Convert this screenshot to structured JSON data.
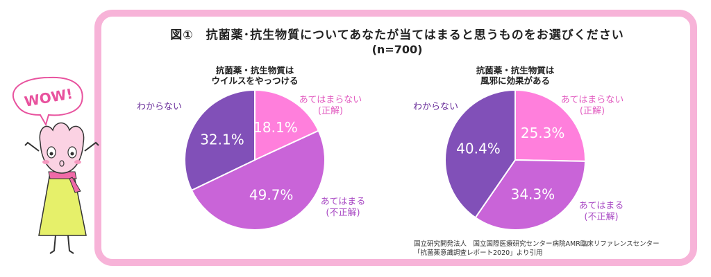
{
  "title": "図①　抗菌薬･抗生物質についてあなたが当てはまると思うものをお選びください",
  "subtitle": "(n=700)",
  "chart_data": [
    {
      "type": "pie",
      "title_lines": [
        "抗菌薬・抗生物質は",
        "ウイルスをやっつける"
      ],
      "slices": [
        {
          "label_lines": [
            "あてはまらない",
            "(正解)"
          ],
          "value": 18.1,
          "display": "18.1%",
          "color": "#ff7fdc"
        },
        {
          "label_lines": [
            "あてはまる",
            "(不正解)"
          ],
          "value": 49.7,
          "display": "49.7%",
          "color": "#c964d8"
        },
        {
          "label_lines": [
            "わからない"
          ],
          "value": 32.1,
          "display": "32.1%",
          "color": "#8150b8"
        }
      ]
    },
    {
      "type": "pie",
      "title_lines": [
        "抗菌薬・抗生物質は",
        "風邪に効果がある"
      ],
      "slices": [
        {
          "label_lines": [
            "あてはまらない",
            "(正解)"
          ],
          "value": 25.3,
          "display": "25.3%",
          "color": "#ff7fdc"
        },
        {
          "label_lines": [
            "あてはまる",
            "(不正解)"
          ],
          "value": 34.3,
          "display": "34.3%",
          "color": "#c964d8"
        },
        {
          "label_lines": [
            "わからない"
          ],
          "value": 40.4,
          "display": "40.4%",
          "color": "#8150b8"
        }
      ]
    }
  ],
  "source_lines": [
    "国立研究開発法人　国立国際医療研究センター病院AMR臨床リファレンスセンター",
    "「抗菌薬意識調査レポート2020」より引用"
  ],
  "mascot": {
    "speech_text": "WOW!"
  },
  "colors": {
    "frame": "#f7b3d8",
    "label_pink": "#e25cc0",
    "label_magenta": "#a94ac4",
    "label_purple": "#6a2f9a"
  }
}
